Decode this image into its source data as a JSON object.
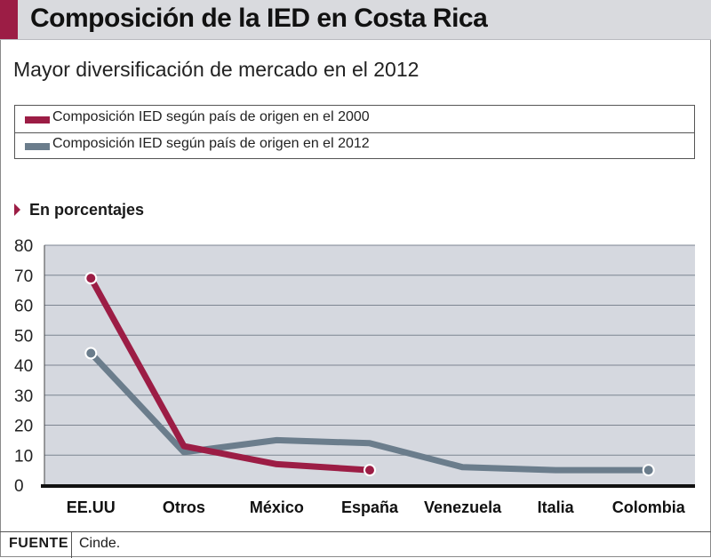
{
  "header": {
    "title": "Composición de la IED en Costa Rica",
    "subtitle": "Mayor diversificación de mercado en el 2012"
  },
  "legend": {
    "items": [
      {
        "label": "Composición IED según país de origen en el 2000",
        "color": "#9c1d45"
      },
      {
        "label": "Composición IED según país de origen en el 2012",
        "color": "#6b7d8c"
      }
    ]
  },
  "units_label": "En porcentajes",
  "footer": {
    "source_label": "FUENTE",
    "source_text": "Cinde."
  },
  "chart_data": {
    "type": "line",
    "categories": [
      "EE.UU",
      "Otros",
      "México",
      "España",
      "Venezuela",
      "Italia",
      "Colombia"
    ],
    "y_ticks": [
      "80",
      "70",
      "60",
      "50",
      "40",
      "30",
      "20",
      "10",
      "0"
    ],
    "ylim": [
      0,
      80
    ],
    "grid": true,
    "series": [
      {
        "name": "Composición IED según país de origen en el 2000",
        "color": "#9c1d45",
        "values": [
          69,
          13,
          7,
          5,
          null,
          null,
          null
        ]
      },
      {
        "name": "Composición IED según país de origen en el 2012",
        "color": "#6b7d8c",
        "values": [
          44,
          11,
          15,
          14,
          6,
          5,
          5
        ]
      }
    ]
  }
}
